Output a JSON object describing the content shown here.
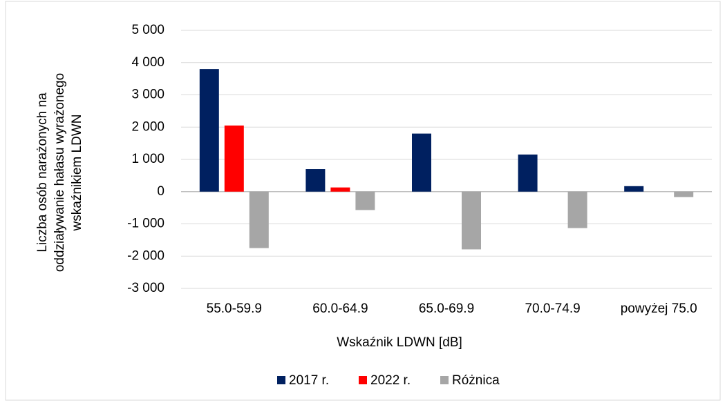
{
  "chart_data": {
    "type": "bar",
    "ylabel": [
      "Liczba osób narażonych na",
      "oddziaływanie hałasu wyrażonego",
      "wskaźnikiem LDWN"
    ],
    "xlabel": "Wskaźnik LDWN [dB]",
    "categories": [
      "55.0-59.9",
      "60.0-64.9",
      "65.0-69.9",
      "70.0-74.9",
      "powyżej 75.0"
    ],
    "series": [
      {
        "name": "2017 r.",
        "color": "#002060",
        "values": [
          3800,
          700,
          1800,
          1150,
          170
        ]
      },
      {
        "name": "2022 r.",
        "color": "#ff0000",
        "values": [
          2050,
          130,
          0,
          0,
          0
        ]
      },
      {
        "name": "Różnica",
        "color": "#a6a6a6",
        "values": [
          -1750,
          -570,
          -1790,
          -1130,
          -170
        ]
      }
    ],
    "ylim": [
      -3000,
      5000
    ],
    "yticks": [
      {
        "value": -3000,
        "label": "-3 000"
      },
      {
        "value": -2000,
        "label": "-2 000"
      },
      {
        "value": -1000,
        "label": "-1 000"
      },
      0,
      {
        "value": 1000,
        "label": "1 000"
      },
      {
        "value": 2000,
        "label": "2 000"
      },
      {
        "value": 3000,
        "label": "3 000"
      },
      {
        "value": 4000,
        "label": "4 000"
      },
      {
        "value": 5000,
        "label": "5 000"
      }
    ],
    "grid": true,
    "legend": "bottom"
  }
}
